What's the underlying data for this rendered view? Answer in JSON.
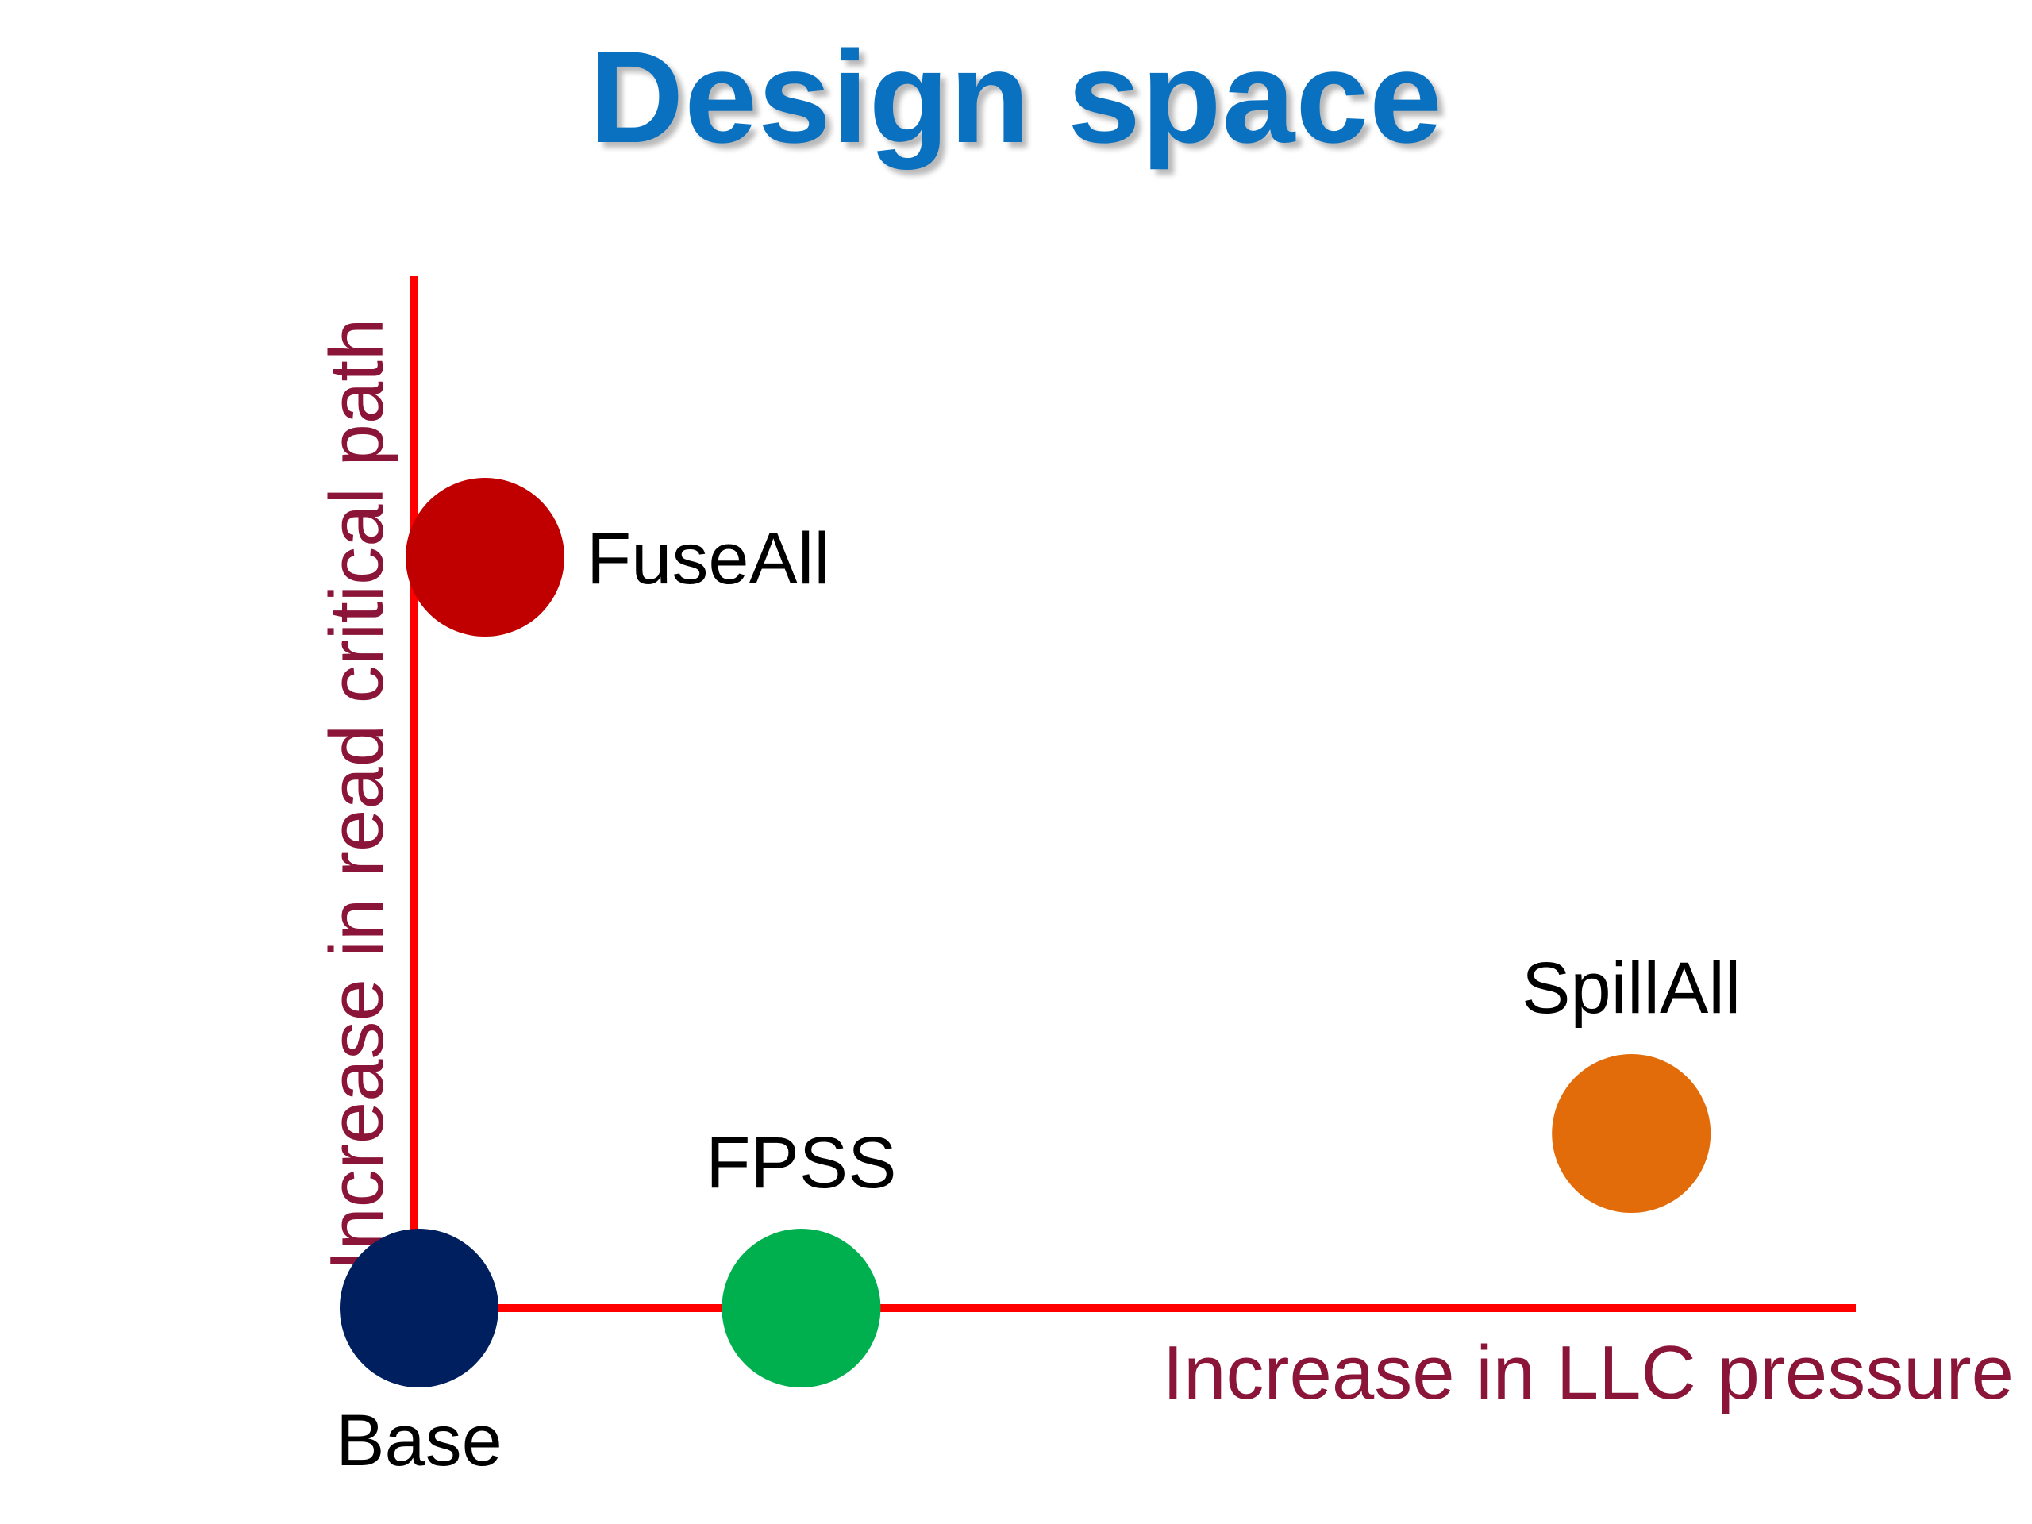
{
  "title": "Design space",
  "colors": {
    "title": "#0A70C0",
    "axis_line": "#FF0000",
    "axis_label": "#8B1538",
    "point_label": "#000000"
  },
  "axes": {
    "x_label": "Increase in LLC pressure",
    "y_label": "Increase in read critical path"
  },
  "points": [
    {
      "label": "Base",
      "x": 0,
      "y": 0,
      "color": "#001F5F",
      "label_position": "below"
    },
    {
      "label": "FPSS",
      "x": 29,
      "y": 0,
      "color": "#00B04F",
      "label_position": "above"
    },
    {
      "label": "FuseAll",
      "x": 5,
      "y": 86,
      "color": "#C00000",
      "label_position": "right"
    },
    {
      "label": "SpillAll",
      "x": 92,
      "y": 20,
      "color": "#E36C0A",
      "label_position": "above"
    }
  ]
}
